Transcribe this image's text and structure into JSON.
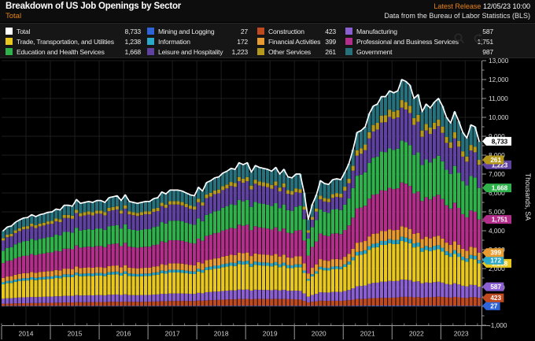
{
  "header": {
    "title": "Breakdown of US Job Openings by Sector",
    "subtitle": "Total",
    "release_label": "Latest Release",
    "release_datetime": "12/05/23 10:00",
    "source": "Data from the Bureau of Labor Statistics (BLS)"
  },
  "toolbar": {
    "icons": [
      "search",
      "refresh"
    ]
  },
  "legend": {
    "columns": [
      [
        {
          "label": "Total",
          "value": "8,733",
          "color": "#ffffff"
        },
        {
          "label": "Trade, Transportation, and Utilities",
          "value": "1,238",
          "color": "#e8c81f"
        },
        {
          "label": "Education and Health Services",
          "value": "1,668",
          "color": "#2fb14c"
        }
      ],
      [
        {
          "label": "Mining and Logging",
          "value": "27",
          "color": "#2f63d8"
        },
        {
          "label": "Information",
          "value": "172",
          "color": "#2aa9c9"
        },
        {
          "label": "Leisure and Hospitality",
          "value": "1,223",
          "color": "#5f42a0"
        }
      ],
      [
        {
          "label": "Construction",
          "value": "423",
          "color": "#bf4a1f"
        },
        {
          "label": "Financial Activities",
          "value": "399",
          "color": "#e79b30"
        },
        {
          "label": "Other Services",
          "value": "261",
          "color": "#b5991c"
        }
      ],
      [
        {
          "label": "Manufacturing",
          "value": "587",
          "color": "#8a5fd1"
        },
        {
          "label": "Professional and Business Services",
          "value": "1,751",
          "color": "#b22e8a"
        },
        {
          "label": "Government",
          "value": "987",
          "color": "#26717c"
        }
      ]
    ]
  },
  "chart_data": {
    "type": "bar",
    "stacked": true,
    "title": "Breakdown of US Job Openings by Sector",
    "ylabel": "Thousands, SA",
    "ylim": [
      -1000,
      13000
    ],
    "y_step": 1000,
    "frequency": "monthly",
    "x_start": "2014-01",
    "x_end": "2023-10",
    "x_year_labels": [
      "2014",
      "2015",
      "2016",
      "2017",
      "2018",
      "2019",
      "2020",
      "2021",
      "2022",
      "2023"
    ],
    "legend_position": "top",
    "grid": true,
    "total_line": {
      "name": "Total",
      "color": "#ffffff",
      "current": 8733,
      "monthly": [
        4000,
        4200,
        4250,
        4450,
        4575,
        4675,
        4700,
        4850,
        4750,
        4850,
        4900,
        4975,
        5000,
        5150,
        5100,
        5350,
        5350,
        5300,
        5650,
        5450,
        5500,
        5550,
        5500,
        5600,
        5600,
        5500,
        5750,
        5800,
        5850,
        5600,
        5900,
        5550,
        5500,
        5450,
        5500,
        5550,
        5550,
        5700,
        5750,
        6050,
        5950,
        6150,
        6150,
        6150,
        6100,
        6000,
        5900,
        5850,
        6300,
        6100,
        6550,
        6650,
        6800,
        6850,
        7050,
        7150,
        7300,
        7250,
        7600,
        7500,
        7600,
        7100,
        7450,
        7350,
        7300,
        7250,
        7150,
        7350,
        7000,
        7250,
        6850,
        6800,
        7000,
        7000,
        6000,
        4600,
        5400,
        5900,
        6650,
        6500,
        6450,
        6700,
        6750,
        6700,
        7100,
        7550,
        8300,
        9200,
        9300,
        9500,
        10200,
        10600,
        10700,
        11100,
        11100,
        11400,
        11300,
        11400,
        12000,
        11900,
        11700,
        11000,
        11200,
        10300,
        10700,
        10500,
        10800,
        11000,
        10600,
        10000,
        9700,
        10300,
        9800,
        9200,
        8900,
        9600,
        9500,
        8733
      ]
    },
    "series": [
      {
        "id": "mining",
        "name": "Mining and Logging",
        "color": "#2f63d8",
        "current": 27,
        "share_keyframes": [
          [
            0,
            0.006
          ],
          [
            35,
            0.005
          ],
          [
            71,
            0.0044
          ],
          [
            75,
            0.0045
          ],
          [
            95,
            0.0035
          ],
          [
            117,
            0.0031
          ]
        ]
      },
      {
        "id": "construction",
        "name": "Construction",
        "color": "#bf4a1f",
        "current": 423,
        "share_keyframes": [
          [
            0,
            0.029
          ],
          [
            35,
            0.04
          ],
          [
            71,
            0.0515
          ],
          [
            75,
            0.039
          ],
          [
            95,
            0.035
          ],
          [
            117,
            0.0484
          ]
        ]
      },
      {
        "id": "manufacturing",
        "name": "Manufacturing",
        "color": "#8a5fd1",
        "current": 587,
        "share_keyframes": [
          [
            0,
            0.069
          ],
          [
            35,
            0.066
          ],
          [
            71,
            0.066
          ],
          [
            75,
            0.063
          ],
          [
            95,
            0.0745
          ],
          [
            117,
            0.0672
          ]
        ]
      },
      {
        "id": "trade",
        "name": "Trade, Transportation, and Utilities",
        "color": "#e8c81f",
        "current": 1238,
        "share_keyframes": [
          [
            0,
            0.195
          ],
          [
            35,
            0.185
          ],
          [
            71,
            0.176
          ],
          [
            75,
            0.174
          ],
          [
            95,
            0.167
          ],
          [
            117,
            0.1418
          ]
        ]
      },
      {
        "id": "information",
        "name": "Information",
        "color": "#2aa9c9",
        "current": 172,
        "share_keyframes": [
          [
            0,
            0.0275
          ],
          [
            35,
            0.024
          ],
          [
            71,
            0.022
          ],
          [
            75,
            0.0196
          ],
          [
            95,
            0.018
          ],
          [
            117,
            0.0197
          ]
        ]
      },
      {
        "id": "financial",
        "name": "Financial Activities",
        "color": "#e79b30",
        "current": 399,
        "share_keyframes": [
          [
            0,
            0.059
          ],
          [
            35,
            0.056
          ],
          [
            71,
            0.059
          ],
          [
            75,
            0.061
          ],
          [
            95,
            0.044
          ],
          [
            117,
            0.0457
          ]
        ]
      },
      {
        "id": "professional",
        "name": "Professional and Business Services",
        "color": "#b22e8a",
        "current": 1751,
        "share_keyframes": [
          [
            0,
            0.2
          ],
          [
            35,
            0.205
          ],
          [
            71,
            0.191
          ],
          [
            75,
            0.196
          ],
          [
            95,
            0.184
          ],
          [
            117,
            0.2005
          ]
        ]
      },
      {
        "id": "education",
        "name": "Education and Health Services",
        "color": "#2fb14c",
        "current": 1668,
        "share_keyframes": [
          [
            0,
            0.169
          ],
          [
            35,
            0.17
          ],
          [
            71,
            0.176
          ],
          [
            75,
            0.185
          ],
          [
            95,
            0.175
          ],
          [
            117,
            0.191
          ]
        ]
      },
      {
        "id": "leisure",
        "name": "Leisure and Hospitality",
        "color": "#5f42a0",
        "current": 1223,
        "share_keyframes": [
          [
            0,
            0.1375
          ],
          [
            35,
            0.145
          ],
          [
            71,
            0.125
          ],
          [
            75,
            0.065
          ],
          [
            95,
            0.14
          ],
          [
            117,
            0.14
          ]
        ]
      },
      {
        "id": "other",
        "name": "Other Services",
        "color": "#b5991c",
        "current": 261,
        "share_keyframes": [
          [
            0,
            0.0325
          ],
          [
            35,
            0.03
          ],
          [
            71,
            0.029
          ],
          [
            75,
            0.026
          ],
          [
            95,
            0.0325
          ],
          [
            117,
            0.0299
          ]
        ]
      },
      {
        "id": "government",
        "name": "Government",
        "color": "#26717c",
        "current": 987,
        "share_keyframes": [
          [
            0,
            0.1
          ],
          [
            35,
            0.095
          ],
          [
            71,
            0.103
          ],
          [
            75,
            0.12
          ],
          [
            95,
            0.083
          ],
          [
            117,
            0.113
          ]
        ]
      }
    ]
  }
}
